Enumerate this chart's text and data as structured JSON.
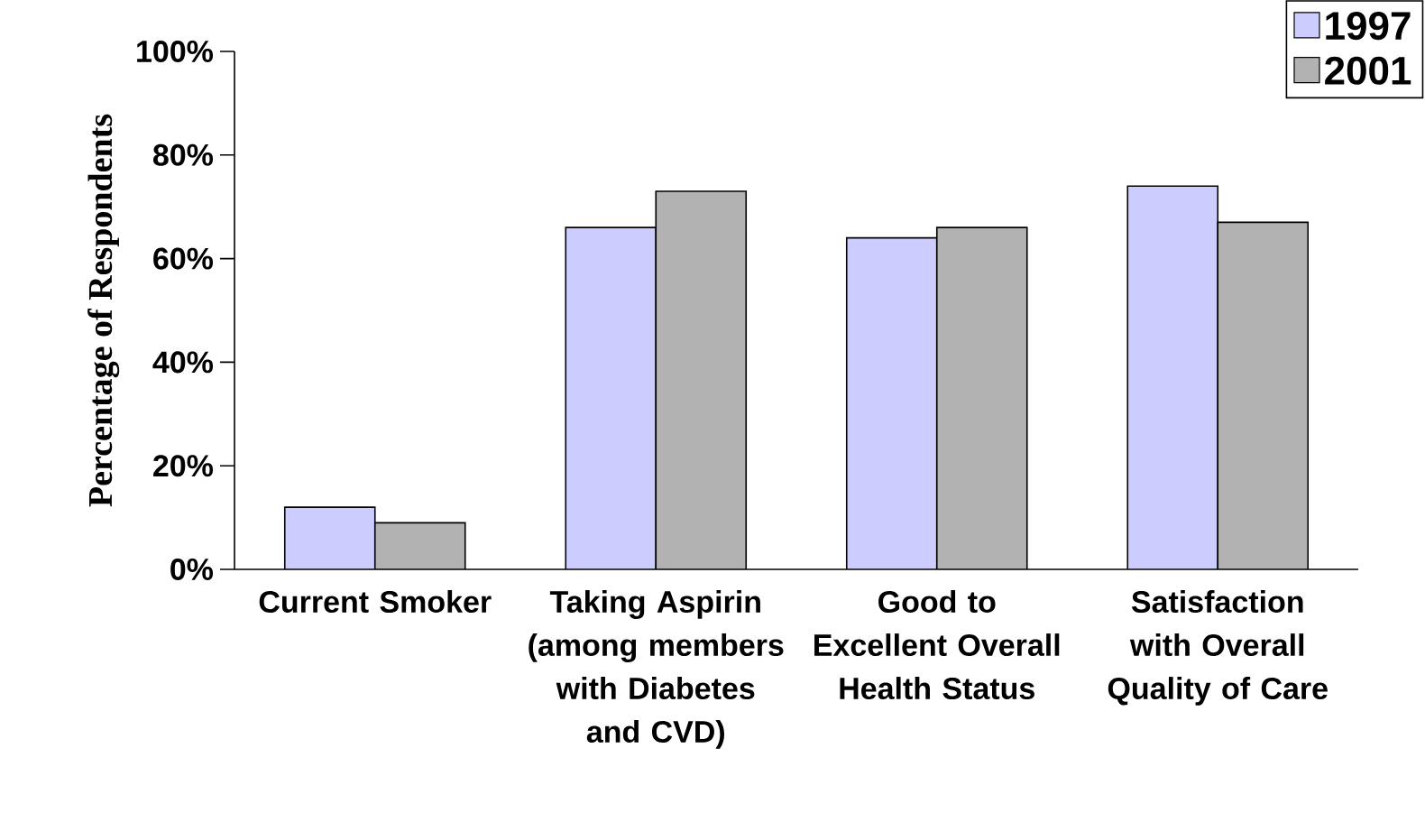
{
  "chart_data": {
    "type": "bar",
    "ylabel": "Percentage of Respondents",
    "categories": [
      "Current Smoker",
      "Taking Aspirin (among members with Diabetes and CVD)",
      "Good to Excellent Overall Health Status",
      "Satisfaction with Overall Quality of Care"
    ],
    "series": [
      {
        "name": "1997",
        "color": "#ccccff",
        "values": [
          12,
          66,
          64,
          74
        ]
      },
      {
        "name": "2001",
        "color": "#b2b2b2",
        "values": [
          9,
          73,
          66,
          67
        ]
      }
    ],
    "ylim": [
      0,
      100
    ],
    "yticks": [
      {
        "value": 0,
        "label": "0%"
      },
      {
        "value": 20,
        "label": "20%"
      },
      {
        "value": 40,
        "label": "40%"
      },
      {
        "value": 60,
        "label": "60%"
      },
      {
        "value": 80,
        "label": "80%"
      },
      {
        "value": 100,
        "label": "100%"
      }
    ],
    "grid": false,
    "legend": "top right"
  }
}
